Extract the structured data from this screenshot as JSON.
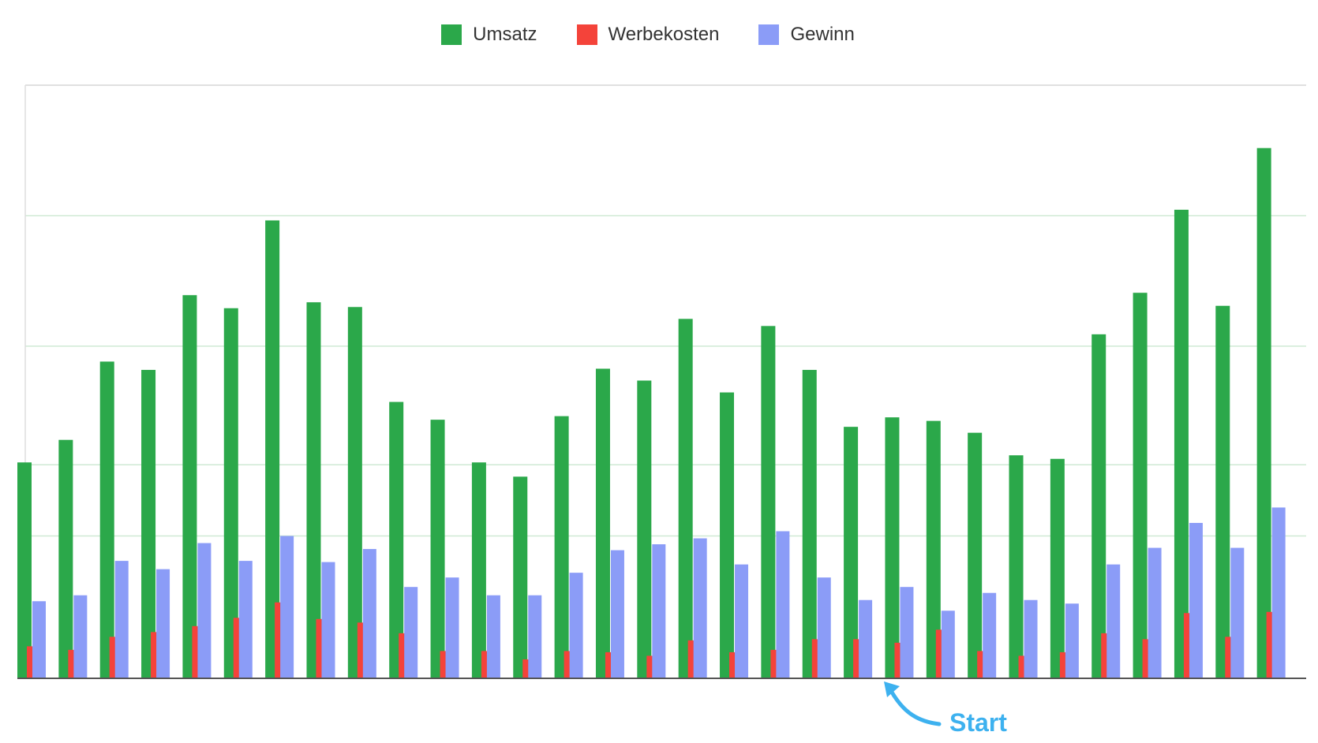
{
  "chart_data": {
    "type": "bar",
    "series": [
      {
        "name": "Umsatz",
        "color": "#2ba84a",
        "values": [
          182,
          201,
          267,
          260,
          323,
          312,
          386,
          317,
          313,
          233,
          218,
          182,
          170,
          221,
          261,
          251,
          303,
          241,
          297,
          260,
          212,
          220,
          217,
          207,
          188,
          185,
          290,
          325,
          395,
          314,
          447
        ]
      },
      {
        "name": "Werbekosten",
        "color": "#f4433a",
        "values": [
          27,
          24,
          35,
          39,
          44,
          51,
          64,
          50,
          47,
          38,
          23,
          23,
          16,
          23,
          22,
          19,
          32,
          22,
          24,
          33,
          33,
          30,
          41,
          23,
          19,
          22,
          38,
          33,
          55,
          35,
          56
        ]
      },
      {
        "name": "Gewinn",
        "color": "#8b9cf7",
        "values": [
          65,
          70,
          99,
          92,
          114,
          99,
          120,
          98,
          109,
          77,
          85,
          70,
          70,
          89,
          108,
          113,
          118,
          96,
          124,
          85,
          66,
          77,
          57,
          72,
          66,
          63,
          96,
          110,
          131,
          110,
          144
        ]
      }
    ],
    "ylim": [
      0,
      500
    ],
    "grid": true,
    "legend_position": "top-center",
    "annotation": {
      "text": "Start",
      "color": "#3db1ef"
    }
  }
}
